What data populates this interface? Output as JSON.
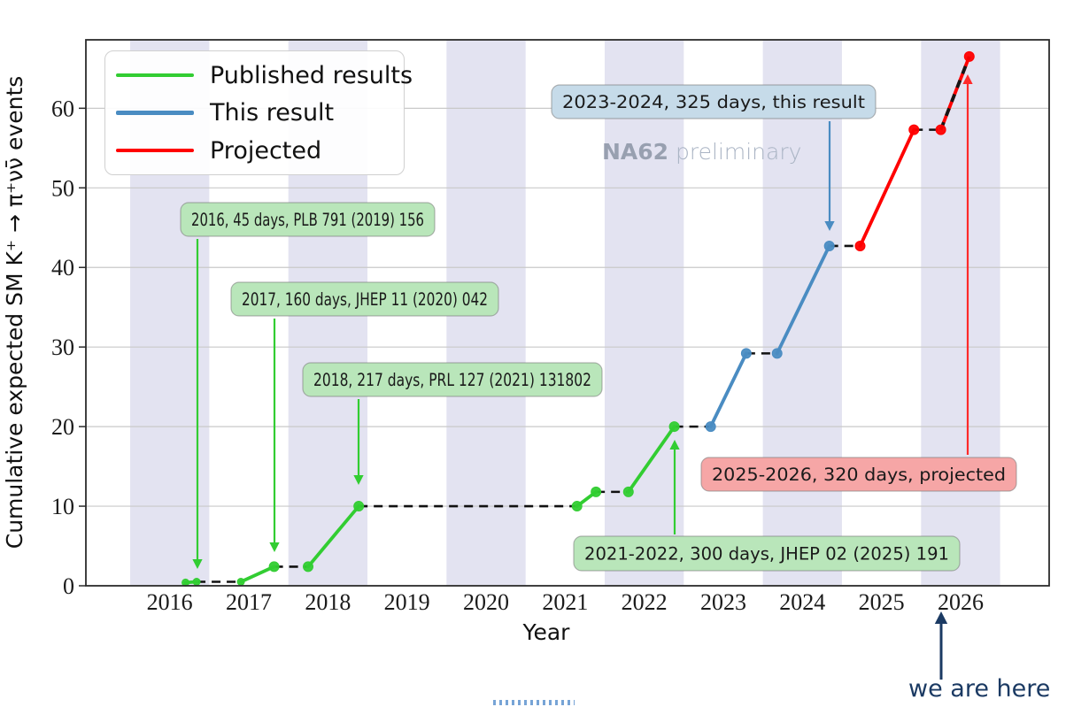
{
  "chart_data": {
    "type": "line",
    "title": "",
    "xlabel": "Year",
    "ylabel": "Cumulative expected SM K⁺ → π⁺νν̄ events",
    "x_ticks": [
      2016,
      2017,
      2018,
      2019,
      2020,
      2021,
      2022,
      2023,
      2024,
      2025,
      2026
    ],
    "y_ticks": [
      0,
      10,
      20,
      30,
      40,
      50,
      60
    ],
    "x_range": [
      2014.94,
      2027.12
    ],
    "y_range": [
      0,
      68.6
    ],
    "grid": "horizontal-only",
    "band_years": [
      2016,
      2018,
      2020,
      2022,
      2024,
      2026
    ],
    "series": [
      {
        "name": "Published results",
        "color": "#32cd32",
        "solid_segments": [
          [
            [
              2016.2,
              0.4
            ],
            [
              2016.34,
              0.5
            ]
          ],
          [
            [
              2016.9,
              0.5
            ],
            [
              2017.32,
              2.4
            ]
          ],
          [
            [
              2017.75,
              2.4
            ],
            [
              2018.39,
              10
            ]
          ],
          [
            [
              2021.15,
              10
            ],
            [
              2021.39,
              11.8
            ]
          ],
          [
            [
              2021.8,
              11.8
            ],
            [
              2022.38,
              20
            ]
          ]
        ],
        "points": [
          [
            2016.2,
            0.4
          ],
          [
            2016.34,
            0.5
          ],
          [
            2016.9,
            0.5
          ],
          [
            2017.32,
            2.4
          ],
          [
            2017.75,
            2.4
          ],
          [
            2018.39,
            10
          ],
          [
            2021.15,
            10
          ],
          [
            2021.39,
            11.8
          ],
          [
            2021.8,
            11.8
          ],
          [
            2022.38,
            20
          ]
        ]
      },
      {
        "name": "This result",
        "color": "#4a8cc2",
        "solid_segments": [
          [
            [
              2022.84,
              20
            ],
            [
              2023.29,
              29.2
            ]
          ],
          [
            [
              2023.68,
              29.2
            ],
            [
              2024.34,
              42.7
            ]
          ]
        ],
        "points": [
          [
            2022.84,
            20
          ],
          [
            2023.29,
            29.2
          ],
          [
            2023.68,
            29.2
          ],
          [
            2024.34,
            42.7
          ]
        ]
      },
      {
        "name": "Projected",
        "color": "#ff0000",
        "solid_segments": [
          [
            [
              2024.73,
              42.7
            ],
            [
              2025.41,
              57.3
            ]
          ]
        ],
        "dashed_segments": [
          [
            [
              2025.75,
              57.3
            ],
            [
              2026.11,
              66.5
            ]
          ]
        ],
        "points": [
          [
            2024.73,
            42.7
          ],
          [
            2025.41,
            57.3
          ],
          [
            2025.75,
            57.3
          ],
          [
            2026.11,
            66.5
          ]
        ]
      }
    ],
    "connectors": [
      [
        [
          2016.34,
          0.5
        ],
        [
          2016.9,
          0.5
        ]
      ],
      [
        [
          2017.32,
          2.4
        ],
        [
          2017.75,
          2.4
        ]
      ],
      [
        [
          2018.39,
          10
        ],
        [
          2021.15,
          10
        ]
      ],
      [
        [
          2021.39,
          11.8
        ],
        [
          2021.8,
          11.8
        ]
      ],
      [
        [
          2022.38,
          20
        ],
        [
          2022.84,
          20
        ]
      ],
      [
        [
          2023.29,
          29.2
        ],
        [
          2023.68,
          29.2
        ]
      ],
      [
        [
          2024.34,
          42.7
        ],
        [
          2024.73,
          42.7
        ]
      ],
      [
        [
          2025.41,
          57.3
        ],
        [
          2025.75,
          57.3
        ]
      ]
    ],
    "annotations": [
      {
        "id": "a2016",
        "label": "2016, 45 days, PLB 791 (2019) 156",
        "fill": "#b9e6ba",
        "arrow_color": "#32cd32",
        "arrow_dir": "down"
      },
      {
        "id": "a2017",
        "label": "2017, 160 days, JHEP 11 (2020) 042",
        "fill": "#b9e6ba",
        "arrow_color": "#32cd32",
        "arrow_dir": "down"
      },
      {
        "id": "a2018",
        "label": "2018, 217 days, PRL 127 (2021) 131802",
        "fill": "#b9e6ba",
        "arrow_color": "#32cd32",
        "arrow_dir": "down"
      },
      {
        "id": "a2122",
        "label": "2021-2022, 300 days, JHEP 02 (2025) 191",
        "fill": "#b9e6ba",
        "arrow_color": "#32cd32",
        "arrow_dir": "up"
      },
      {
        "id": "a2324",
        "label": "2023-2024, 325 days, this result",
        "fill": "#c6dbe9",
        "arrow_color": "#4a8cc2",
        "arrow_dir": "down"
      },
      {
        "id": "a2526",
        "label": "2025-2026, 320 days, projected",
        "fill": "#f6a6a6",
        "arrow_color": "#ff2a2a",
        "arrow_dir": "up"
      }
    ],
    "colors": {
      "band": "#e3e3f1",
      "grid": "#c9c9c9",
      "spine": "#2b2b2b",
      "connector": "#111111",
      "tick_text": "#1a1a1a",
      "annotation_border": "#7a7a7a",
      "annotation_text": "#1a1a1a"
    }
  },
  "legend": {
    "items": [
      {
        "label": "Published results",
        "color": "#32cd32"
      },
      {
        "label": "This result",
        "color": "#4a8cc2"
      },
      {
        "label": "Projected",
        "color": "#ff0000"
      }
    ]
  },
  "watermark": {
    "bold": "NA62",
    "light": "preliminary",
    "color_bold": "#98a0b0",
    "color_light": "#aab4c4"
  },
  "status": {
    "we_are_here": "we are here",
    "color": "#1b3a63"
  }
}
